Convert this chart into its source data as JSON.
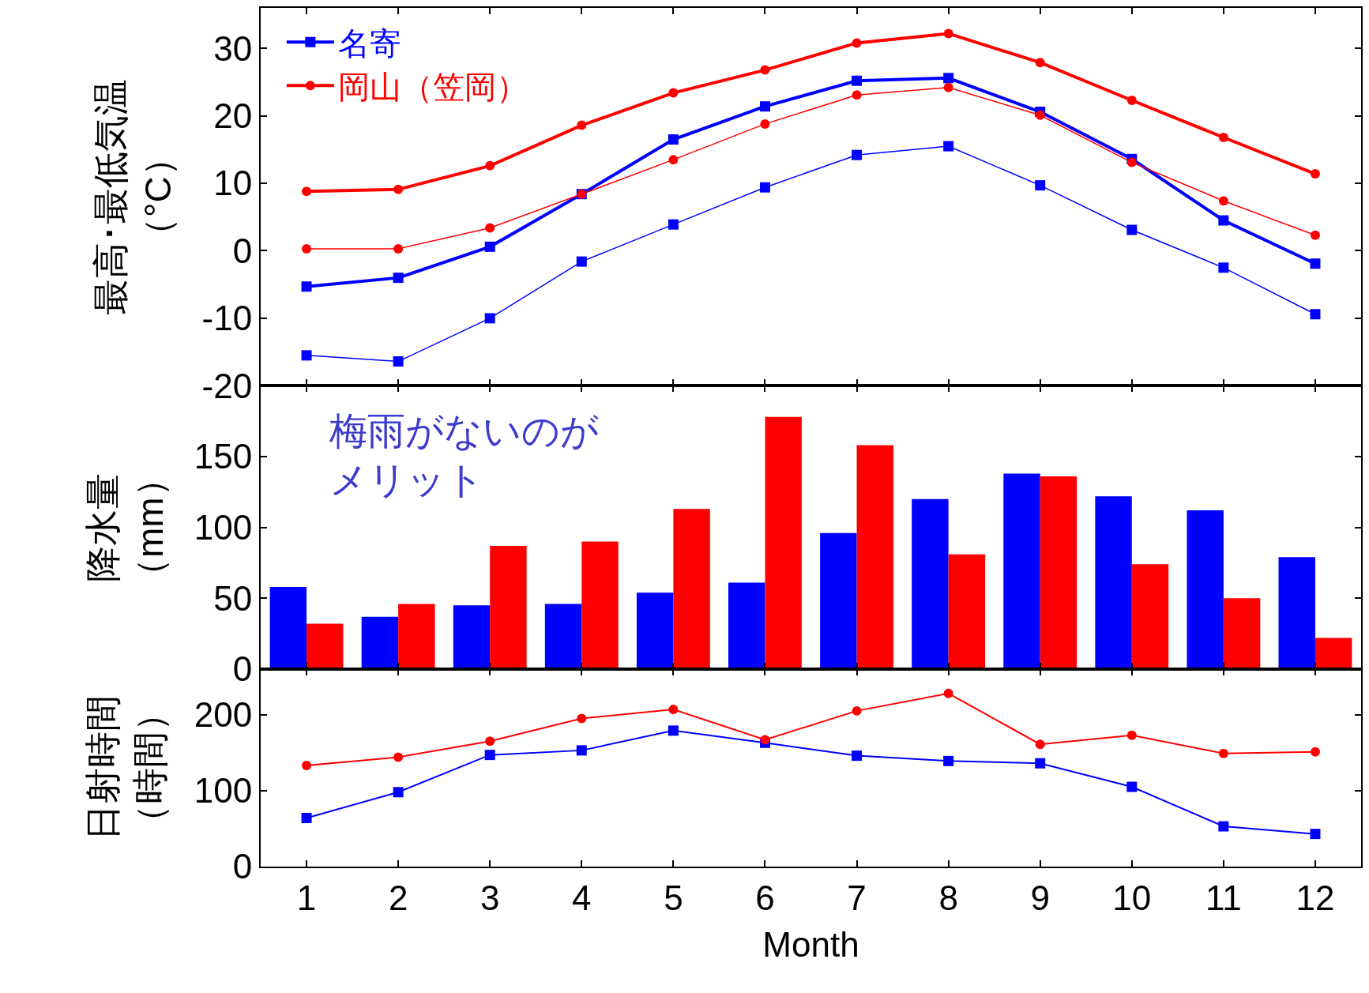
{
  "chart_data": [
    {
      "type": "line",
      "ylabel": "最高･最低気温（°C）",
      "x": [
        1,
        2,
        3,
        4,
        5,
        6,
        7,
        8,
        9,
        10,
        11,
        12
      ],
      "xlim": [
        0.5,
        12.5
      ],
      "xticks": [
        1,
        2,
        3,
        4,
        5,
        6,
        7,
        8,
        9,
        10,
        11,
        12
      ],
      "ylim": [
        -20,
        36
      ],
      "yticks": [
        -20,
        -10,
        0,
        10,
        20,
        30
      ],
      "tick_labels": "y",
      "legend": "top left",
      "series": [
        {
          "name": "名寄",
          "color": "#0000ff",
          "marker": "square",
          "values": [
            -5.3,
            -4.0,
            0.6,
            8.4,
            16.5,
            21.4,
            25.2,
            25.6,
            20.6,
            13.6,
            4.5,
            -1.9
          ]
        },
        {
          "name": "岡山（笠岡）",
          "color": "#ff0000",
          "marker": "circle",
          "values": [
            8.8,
            9.1,
            12.6,
            18.6,
            23.4,
            26.8,
            30.8,
            32.2,
            27.9,
            22.3,
            16.8,
            11.4
          ]
        },
        {
          "color": "#0000ff",
          "marker": "square",
          "values": [
            -15.5,
            -16.4,
            -10.0,
            -1.6,
            3.9,
            9.4,
            14.2,
            15.5,
            9.7,
            3.1,
            -2.5,
            -9.4
          ]
        },
        {
          "color": "#ff0000",
          "marker": "circle",
          "values": [
            0.3,
            0.3,
            3.4,
            8.4,
            13.5,
            18.8,
            23.1,
            24.2,
            20.1,
            13.1,
            7.4,
            2.3
          ]
        }
      ]
    },
    {
      "type": "bar",
      "ylabel": "降水量（mm）",
      "x": [
        1,
        2,
        3,
        4,
        5,
        6,
        7,
        8,
        9,
        10,
        11,
        12
      ],
      "xlim": [
        0.5,
        12.5
      ],
      "xticks": [
        1,
        2,
        3,
        4,
        5,
        6,
        7,
        8,
        9,
        10,
        11,
        12
      ],
      "ylim": [
        0,
        200
      ],
      "yticks": [
        0,
        50,
        100,
        150
      ],
      "tick_labels": "y",
      "annotations": [
        "梅雨がないのがメリット"
      ],
      "series": [
        {
          "color": "#0000ff",
          "values": [
            58,
            37,
            45,
            46,
            54,
            61,
            96,
            120,
            138,
            122,
            112,
            79
          ]
        },
        {
          "color": "#ff0000",
          "values": [
            32,
            46,
            87,
            90,
            113,
            178,
            158,
            81,
            136,
            74,
            50,
            22
          ]
        }
      ]
    },
    {
      "type": "line",
      "ylabel": "日射時間（時間）",
      "xlabel": "Month",
      "x": [
        1,
        2,
        3,
        4,
        5,
        6,
        7,
        8,
        9,
        10,
        11,
        12
      ],
      "xlim": [
        0.5,
        12.5
      ],
      "xticks": [
        1,
        2,
        3,
        4,
        5,
        6,
        7,
        8,
        9,
        10,
        11,
        12
      ],
      "ylim": [
        0,
        260
      ],
      "yticks": [
        0,
        100,
        200
      ],
      "series": [
        {
          "color": "#0000ff",
          "marker": "square",
          "values": [
            64,
            98,
            147,
            153,
            179,
            163,
            146,
            139,
            136,
            105,
            53,
            43
          ]
        },
        {
          "color": "#ff0000",
          "marker": "circle",
          "values": [
            133,
            144,
            165,
            195,
            207,
            167,
            205,
            228,
            161,
            173,
            149,
            151
          ]
        }
      ]
    }
  ]
}
